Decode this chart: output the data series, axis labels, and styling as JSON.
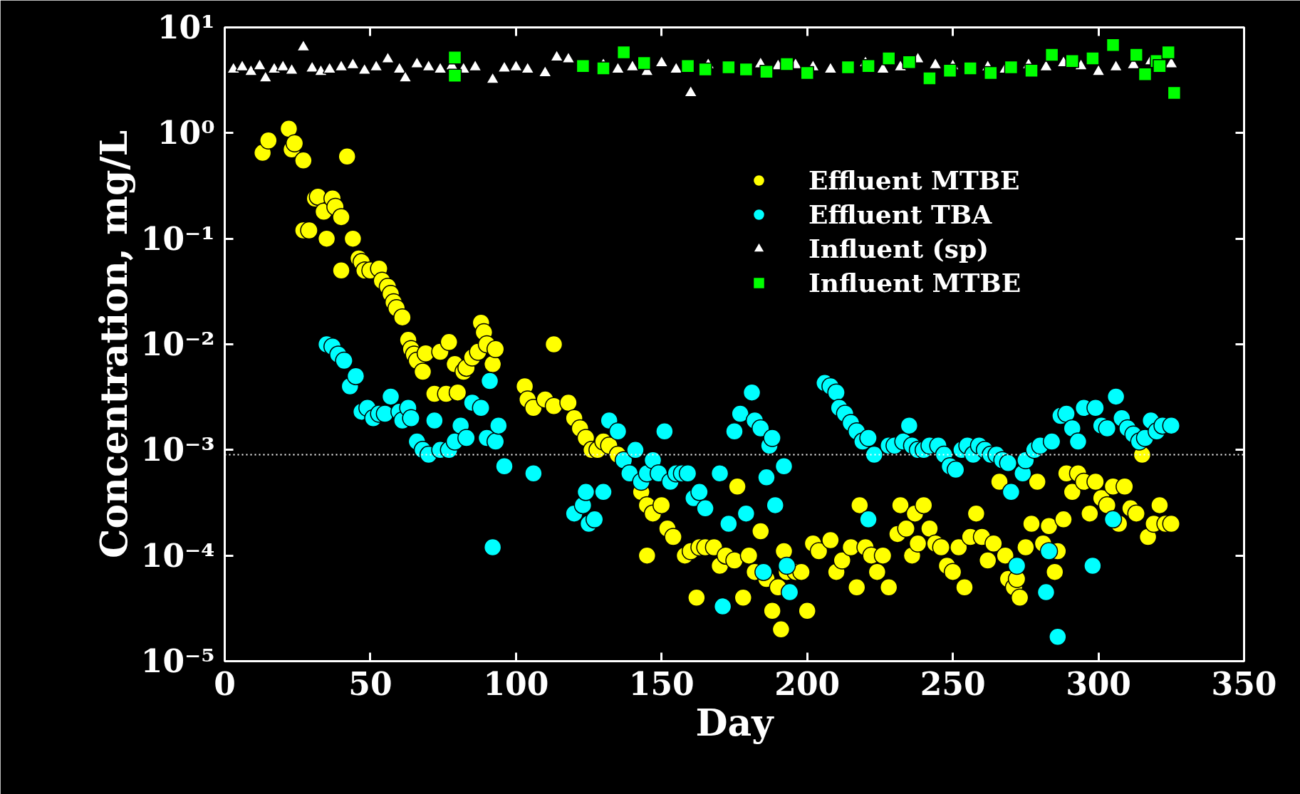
{
  "chart_data": {
    "type": "scatter",
    "xlabel": "Day",
    "ylabel": "Concentration, mg/L",
    "log": "y",
    "grid": false,
    "legend": "top right",
    "xlim": [
      0,
      350
    ],
    "xticks": [
      0,
      50,
      100,
      150,
      200,
      250,
      300,
      350
    ],
    "ylim": [
      1e-05,
      10
    ],
    "yticks": [
      {
        "value": 1e-05,
        "label": "10⁻⁵"
      },
      {
        "value": 0.0001,
        "label": "10⁻⁴"
      },
      {
        "value": 0.001,
        "label": "10⁻³"
      },
      {
        "value": 0.01,
        "label": "10⁻²"
      },
      {
        "value": 0.1,
        "label": "10⁻¹"
      },
      {
        "value": 1,
        "label": "10⁰"
      },
      {
        "value": 10,
        "label": "10¹"
      }
    ],
    "ref_lines": [
      {
        "axis": "y",
        "value": 0.0009,
        "color": "#ffffff",
        "line_style": "dotted"
      }
    ],
    "series": [
      {
        "name": "Effluent MTBE",
        "color": "#ffff00",
        "marker": "circle",
        "x": [
          13,
          15,
          22,
          23,
          24,
          27,
          27,
          29,
          31,
          32,
          34,
          35,
          37,
          38,
          40,
          40,
          42,
          44,
          46,
          47,
          48,
          50,
          53,
          54,
          56,
          57,
          58,
          59,
          61,
          63,
          64,
          65,
          66,
          68,
          69,
          72,
          74,
          76,
          77,
          79,
          80,
          82,
          83,
          85,
          87,
          88,
          89,
          90,
          92,
          93,
          113,
          103,
          104,
          106,
          110,
          113,
          118,
          120,
          122,
          124,
          126,
          128,
          130,
          132,
          135,
          143,
          145,
          147,
          150,
          152,
          154,
          145,
          158,
          160,
          162,
          163,
          165,
          168,
          170,
          172,
          175,
          178,
          176,
          180,
          182,
          184,
          186,
          188,
          190,
          191,
          192,
          193,
          196,
          198,
          200,
          202,
          204,
          208,
          210,
          212,
          215,
          217,
          218,
          220,
          222,
          224,
          226,
          228,
          231,
          232,
          234,
          236,
          237,
          238,
          240,
          242,
          244,
          246,
          248,
          250,
          252,
          254,
          256,
          258,
          260,
          262,
          264,
          266,
          268,
          269,
          271,
          272,
          273,
          275,
          277,
          279,
          281,
          283,
          285,
          286,
          288,
          289,
          291,
          293,
          295,
          297,
          299,
          301,
          303,
          305,
          307,
          309,
          311,
          313,
          315,
          317,
          319,
          321,
          323,
          325
        ],
        "values": [
          0.65,
          0.85,
          1.1,
          0.7,
          0.8,
          0.55,
          0.12,
          0.12,
          0.24,
          0.25,
          0.18,
          0.1,
          0.24,
          0.2,
          0.16,
          0.05,
          0.6,
          0.1,
          0.065,
          0.06,
          0.05,
          0.05,
          0.052,
          0.04,
          0.035,
          0.03,
          0.025,
          0.022,
          0.018,
          0.011,
          0.009,
          0.008,
          0.007,
          0.0055,
          0.0082,
          0.0034,
          0.0085,
          0.0034,
          0.0105,
          0.0065,
          0.0035,
          0.0055,
          0.006,
          0.0075,
          0.0085,
          0.016,
          0.013,
          0.01,
          0.0065,
          0.009,
          0.01,
          0.004,
          0.003,
          0.0025,
          0.003,
          0.0026,
          0.0028,
          0.002,
          0.0016,
          0.0013,
          0.001,
          0.001,
          0.0012,
          0.0011,
          0.0009,
          0.0004,
          0.0003,
          0.00025,
          0.0003,
          0.00018,
          0.00015,
          0.0001,
          0.0001,
          0.00011,
          4e-05,
          0.00012,
          0.00012,
          0.00012,
          8e-05,
          0.0001,
          9e-05,
          4e-05,
          0.00045,
          0.0001,
          7e-05,
          0.00017,
          6e-05,
          3e-05,
          5e-05,
          2e-05,
          0.00011,
          7e-05,
          7e-05,
          7e-05,
          3e-05,
          0.00013,
          0.00011,
          0.00014,
          7e-05,
          9e-05,
          0.00012,
          5e-05,
          0.0003,
          0.00012,
          0.0001,
          7e-05,
          0.0001,
          5e-05,
          0.00016,
          0.0003,
          0.00018,
          0.0001,
          0.00025,
          0.00013,
          0.0003,
          0.00018,
          0.00013,
          0.00012,
          8e-05,
          7e-05,
          0.00012,
          5e-05,
          0.00015,
          0.00025,
          0.00015,
          9e-05,
          0.00013,
          0.0005,
          0.0001,
          6e-05,
          5e-05,
          6e-05,
          4e-05,
          0.00012,
          0.0002,
          0.0005,
          0.00013,
          0.00019,
          7e-05,
          0.00011,
          0.00022,
          0.0006,
          0.0004,
          0.0006,
          0.0005,
          0.00025,
          0.0005,
          0.00035,
          0.0003,
          0.00045,
          0.0002,
          0.00045,
          0.00028,
          0.00025,
          0.0009,
          0.00015,
          0.0002,
          0.0003,
          0.0002,
          0.0002
        ]
      },
      {
        "name": "Effluent TBA",
        "color": "#00ffff",
        "marker": "circle",
        "x": [
          35,
          37,
          39,
          41,
          43,
          45,
          47,
          49,
          51,
          53,
          55,
          57,
          60,
          61,
          63,
          64,
          66,
          68,
          70,
          72,
          74,
          77,
          79,
          81,
          83,
          85,
          88,
          90,
          91,
          93,
          94,
          96,
          92,
          106,
          120,
          123,
          125,
          127,
          124,
          130,
          132,
          135,
          137,
          139,
          141,
          143,
          145,
          147,
          149,
          151,
          153,
          155,
          157,
          159,
          161,
          163,
          165,
          170,
          171,
          173,
          175,
          177,
          179,
          181,
          182,
          184,
          186,
          185,
          187,
          188,
          189,
          192,
          193,
          194,
          206,
          208,
          210,
          211,
          213,
          215,
          217,
          219,
          221,
          223,
          221,
          228,
          230,
          233,
          235,
          236,
          238,
          240,
          242,
          245,
          247,
          249,
          251,
          253,
          255,
          257,
          259,
          261,
          263,
          265,
          267,
          269,
          270,
          272,
          274,
          275,
          278,
          280,
          282,
          283,
          284,
          286,
          287,
          289,
          291,
          293,
          295,
          298,
          299,
          301,
          303,
          305,
          306,
          308,
          310,
          312,
          314,
          316,
          318,
          320,
          322,
          325
        ],
        "values": [
          0.01,
          0.0095,
          0.008,
          0.007,
          0.004,
          0.005,
          0.0023,
          0.0025,
          0.002,
          0.0022,
          0.0022,
          0.0032,
          0.0023,
          0.0019,
          0.0025,
          0.002,
          0.0012,
          0.001,
          0.0009,
          0.0019,
          0.001,
          0.001,
          0.0012,
          0.0017,
          0.0013,
          0.0028,
          0.0025,
          0.0013,
          0.0045,
          0.0012,
          0.0017,
          0.0007,
          0.00012,
          0.0006,
          0.00025,
          0.0003,
          0.0002,
          0.00022,
          0.0004,
          0.0004,
          0.0019,
          0.0015,
          0.0008,
          0.0006,
          0.001,
          0.0005,
          0.0006,
          0.0008,
          0.0006,
          0.0015,
          0.0005,
          0.0006,
          0.0006,
          0.0006,
          0.00035,
          0.0004,
          0.00028,
          0.0006,
          3.3e-05,
          0.0002,
          0.0015,
          0.0022,
          0.00025,
          0.0035,
          0.0019,
          0.0016,
          0.00055,
          7e-05,
          0.0011,
          0.0013,
          0.0003,
          0.0007,
          8e-05,
          4.5e-05,
          0.0043,
          0.004,
          0.0035,
          0.0025,
          0.0022,
          0.0018,
          0.0015,
          0.0012,
          0.0013,
          0.0009,
          0.00022,
          0.0011,
          0.0011,
          0.0012,
          0.0017,
          0.0011,
          0.001,
          0.001,
          0.0011,
          0.0011,
          0.0009,
          0.0007,
          0.00065,
          0.001,
          0.0011,
          0.0009,
          0.0011,
          0.001,
          0.0009,
          0.0009,
          0.0008,
          0.00075,
          0.0004,
          8e-05,
          0.0006,
          0.0008,
          0.001,
          0.0011,
          4.5e-05,
          0.00011,
          0.0012,
          1.7e-05,
          0.0021,
          0.0022,
          0.0016,
          0.0012,
          0.0025,
          8e-05,
          0.0025,
          0.0017,
          0.0016,
          0.00022,
          0.0032,
          0.002,
          0.0016,
          0.0014,
          0.0012,
          0.0013,
          0.0019,
          0.0015,
          0.0017,
          0.0017
        ]
      },
      {
        "name": "Influent (sp)",
        "color": "#ffffff",
        "marker": "triangle",
        "x": [
          3,
          6,
          9,
          12,
          14,
          17,
          20,
          23,
          27,
          30,
          33,
          36,
          40,
          44,
          48,
          52,
          56,
          60,
          62,
          66,
          70,
          74,
          78,
          82,
          86,
          92,
          96,
          100,
          104,
          110,
          114,
          118,
          130,
          135,
          140,
          145,
          150,
          155,
          160,
          166,
          184,
          190,
          196,
          202,
          208,
          220,
          226,
          232,
          238,
          244,
          250,
          262,
          268,
          276,
          282,
          288,
          294,
          300,
          306,
          312,
          318,
          325
        ],
        "values": [
          4,
          4.2,
          3.8,
          4.3,
          3.3,
          4,
          4.2,
          3.9,
          6.5,
          4.1,
          3.8,
          4,
          4.2,
          4.4,
          3.9,
          4.2,
          5,
          4,
          3.3,
          4.5,
          4.2,
          4,
          4.3,
          4,
          4.2,
          3.2,
          4.1,
          4.2,
          4,
          3.7,
          5.2,
          5,
          4.4,
          4,
          4.2,
          3.8,
          4.6,
          4,
          2.4,
          4.4,
          4.5,
          4.3,
          4.4,
          4.2,
          4,
          4.6,
          4,
          4.2,
          5,
          4.4,
          4.3,
          4.2,
          4,
          4.4,
          4.2,
          4.6,
          4.3,
          3.8,
          4.2,
          4.4,
          4.8,
          4.5
        ]
      },
      {
        "name": "Influent MTBE",
        "color": "#00ff00",
        "marker": "square",
        "x": [
          79,
          79,
          123,
          130,
          137,
          144,
          159,
          165,
          173,
          179,
          186,
          193,
          200,
          214,
          221,
          228,
          235,
          242,
          249,
          256,
          263,
          270,
          277,
          284,
          291,
          298,
          305,
          313,
          316,
          320,
          321,
          324,
          326
        ],
        "values": [
          3.5,
          5.2,
          4.3,
          4.1,
          5.8,
          4.6,
          4.3,
          4,
          4.2,
          4,
          3.8,
          4.5,
          3.7,
          4.2,
          4.3,
          5.1,
          4.7,
          3.3,
          3.9,
          4.1,
          3.7,
          4.2,
          3.9,
          5.5,
          4.8,
          5.1,
          6.8,
          5.5,
          3.6,
          4.8,
          4.3,
          5.8,
          2.4
        ]
      }
    ]
  }
}
